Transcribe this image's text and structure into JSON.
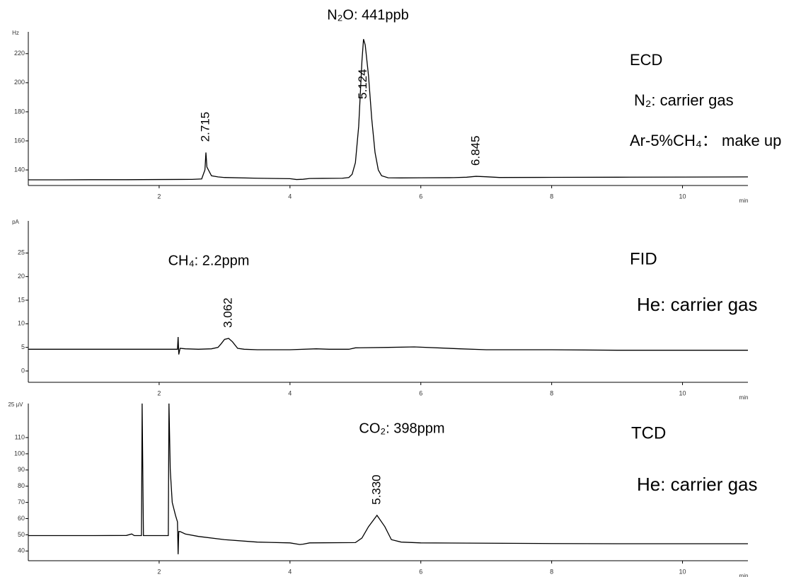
{
  "chart_data": [
    {
      "type": "line",
      "detector": "ECD",
      "compound_label": "N₂O: 441ppb",
      "gas_notes": [
        "N₂: carrier gas",
        "Ar-5%CH₄： make up"
      ],
      "ylabel": "Hz",
      "xlabel": "min",
      "color": "#000000",
      "xlim": [
        0,
        11
      ],
      "xticks": [
        2,
        4,
        6,
        8,
        10
      ],
      "ylim": [
        129.3,
        235
      ],
      "yticks": [
        140,
        160,
        180,
        200,
        220
      ],
      "x": [
        0,
        0.5,
        1,
        1.5,
        2,
        2.5,
        2.65,
        2.7,
        2.715,
        2.73,
        2.8,
        2.9,
        3.0,
        3.5,
        4.0,
        4.1,
        4.2,
        4.3,
        4.5,
        4.8,
        4.9,
        4.95,
        5.0,
        5.05,
        5.1,
        5.124,
        5.15,
        5.2,
        5.25,
        5.3,
        5.35,
        5.4,
        5.5,
        5.7,
        6.0,
        6.5,
        6.7,
        6.845,
        7.0,
        7.2,
        8,
        9,
        10,
        11
      ],
      "values": [
        133.2,
        133.2,
        133.3,
        133.3,
        133.4,
        133.5,
        133.8,
        140,
        152,
        142,
        136,
        135.2,
        134.8,
        134.3,
        134,
        133.4,
        133.6,
        134.1,
        134.2,
        134.3,
        134.8,
        137,
        145,
        170,
        215,
        230,
        226,
        205,
        175,
        152,
        140,
        136,
        134.6,
        134.5,
        134.6,
        134.7,
        135,
        135.6,
        135.3,
        134.8,
        134.9,
        135,
        135.1,
        135.2
      ],
      "peak_labels": [
        2.715,
        5.124,
        6.845
      ]
    },
    {
      "type": "line",
      "detector": "FID",
      "compound_label": "CH₄: 2.2ppm",
      "gas_notes": [
        "He: carrier gas"
      ],
      "ylabel": "pA",
      "xlabel": "min",
      "color": "#000000",
      "xlim": [
        0,
        11
      ],
      "xticks": [
        2,
        4,
        6,
        8,
        10
      ],
      "ylim": [
        -2.4,
        31.8
      ],
      "yticks": [
        0,
        5,
        10,
        15,
        20,
        25
      ],
      "x": [
        0,
        1,
        2,
        2.28,
        2.29,
        2.3,
        2.32,
        2.4,
        2.6,
        2.8,
        2.9,
        2.95,
        3.0,
        3.062,
        3.12,
        3.2,
        3.3,
        3.5,
        4,
        4.4,
        4.6,
        4.9,
        5.0,
        5.5,
        5.9,
        6.6,
        7,
        8,
        9,
        10,
        11
      ],
      "values": [
        4.6,
        4.6,
        4.6,
        4.6,
        7.2,
        3.5,
        4.8,
        4.7,
        4.6,
        4.7,
        5,
        5.8,
        6.7,
        6.9,
        6.2,
        4.8,
        4.6,
        4.5,
        4.5,
        4.7,
        4.6,
        4.6,
        4.9,
        5,
        5.1,
        4.7,
        4.5,
        4.5,
        4.4,
        4.4,
        4.4
      ],
      "peak_labels": [
        3.062
      ]
    },
    {
      "type": "line",
      "detector": "TCD",
      "compound_label": "CO₂: 398ppm",
      "gas_notes": [
        "He: carrier gas"
      ],
      "ylabel": "25 µV",
      "xlabel": "min",
      "color": "#000000",
      "xlim": [
        0,
        11
      ],
      "xticks": [
        2,
        4,
        6,
        8,
        10
      ],
      "ylim": [
        34,
        131
      ],
      "yticks": [
        40,
        50,
        60,
        70,
        80,
        90,
        100,
        110
      ],
      "x": [
        0,
        1,
        1.5,
        1.58,
        1.62,
        1.7,
        1.73,
        1.74,
        1.76,
        2.0,
        2.14,
        2.15,
        2.17,
        2.2,
        2.25,
        2.28,
        2.29,
        2.3,
        2.32,
        2.4,
        2.6,
        3,
        3.5,
        4,
        4.15,
        4.2,
        4.3,
        5,
        5.1,
        5.2,
        5.33,
        5.45,
        5.55,
        5.7,
        6,
        7,
        8,
        9,
        10,
        11
      ],
      "values": [
        49.5,
        49.5,
        49.6,
        50.5,
        49.5,
        49.5,
        49.5,
        131,
        49.5,
        49.5,
        49.5,
        131,
        90,
        70,
        62,
        58,
        38,
        52,
        52,
        50.5,
        49,
        47,
        45.5,
        45,
        44,
        44.2,
        45,
        45.2,
        48,
        55,
        62,
        55,
        47,
        45.5,
        45,
        44.8,
        44.6,
        44.5,
        44.5,
        44.5
      ],
      "peak_labels": [
        {
          "value": 5.33,
          "label": "5.330"
        }
      ]
    }
  ]
}
